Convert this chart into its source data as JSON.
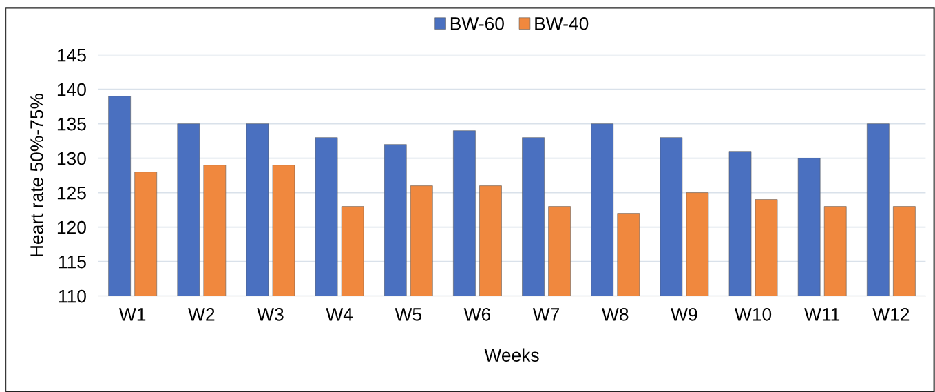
{
  "chart_data": {
    "type": "bar",
    "xlabel": "Weeks",
    "ylabel": "Heart rate 50%-75%",
    "categories": [
      "W1",
      "W2",
      "W3",
      "W4",
      "W5",
      "W6",
      "W7",
      "W8",
      "W9",
      "W10",
      "W11",
      "W12"
    ],
    "series": [
      {
        "name": "BW-60",
        "color": "#4a70c0",
        "values": [
          139,
          135,
          135,
          133,
          132,
          134,
          133,
          135,
          133,
          131,
          130,
          135
        ]
      },
      {
        "name": "BW-40",
        "color": "#f0883e",
        "values": [
          128,
          129,
          129,
          123,
          126,
          126,
          123,
          122,
          125,
          124,
          123,
          123
        ]
      }
    ],
    "ylim": [
      110,
      145
    ],
    "yticks": [
      110,
      115,
      120,
      125,
      130,
      135,
      140,
      145
    ],
    "grid": "y",
    "legend": "top"
  }
}
